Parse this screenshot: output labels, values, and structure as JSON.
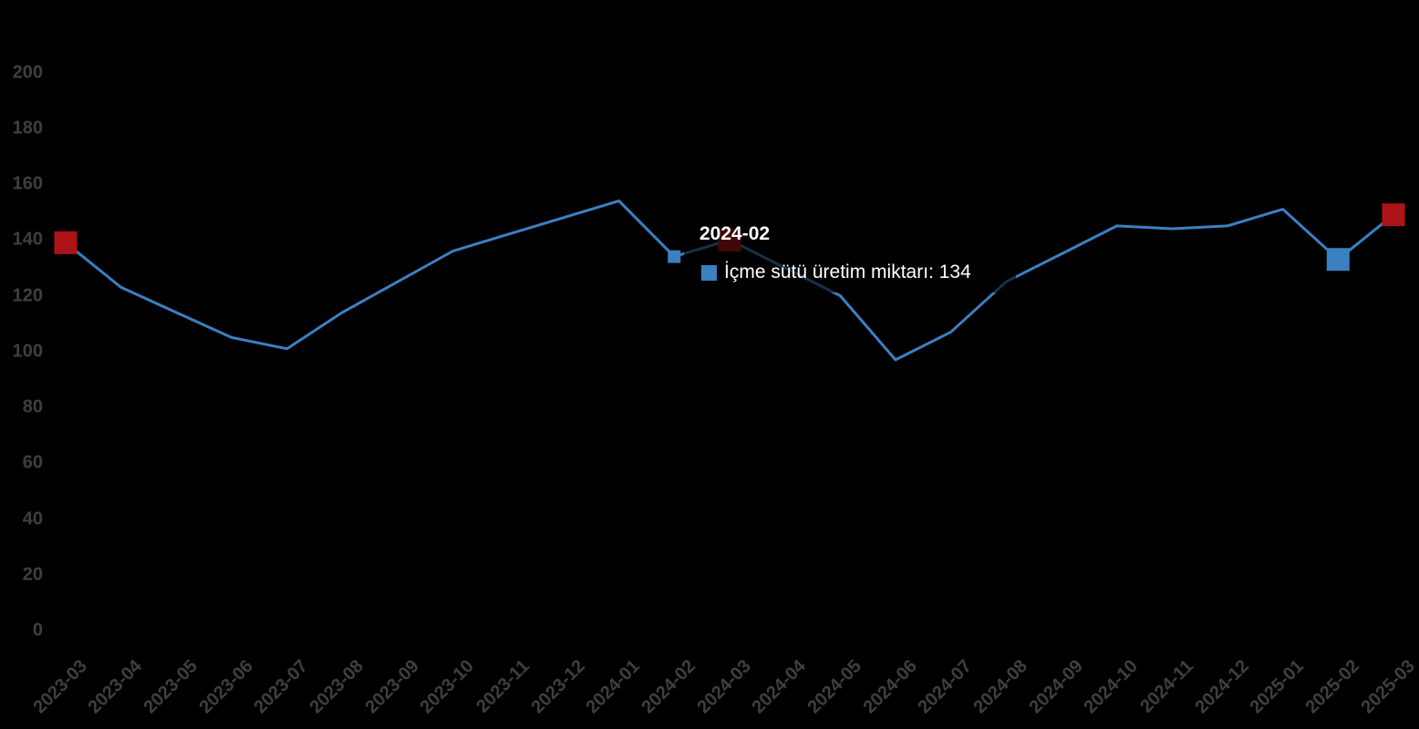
{
  "chart_data": {
    "type": "line",
    "title": "",
    "categories": [
      "2023-03",
      "2023-04",
      "2023-05",
      "2023-06",
      "2023-07",
      "2023-08",
      "2023-09",
      "2023-10",
      "2023-11",
      "2023-12",
      "2024-01",
      "2024-02",
      "2024-03",
      "2024-04",
      "2024-05",
      "2024-06",
      "2024-07",
      "2024-08",
      "2024-09",
      "2024-10",
      "2024-11",
      "2024-12",
      "2025-01",
      "2025-02",
      "2025-03"
    ],
    "series": [
      {
        "name": "İçme sütü üretim miktarı",
        "values": [
          139,
          123,
          114,
          105,
          101,
          114,
          125,
          136,
          142,
          148,
          154,
          134,
          140,
          130,
          120,
          97,
          107,
          125,
          135,
          145,
          144,
          145,
          151,
          133,
          149
        ]
      }
    ],
    "xlabel": "",
    "ylabel": "",
    "ylim": [
      0,
      200
    ],
    "ytick_step": 20,
    "y_tick_labels": [
      "0",
      "20",
      "40",
      "60",
      "80",
      "100",
      "120",
      "140",
      "160",
      "180",
      "200"
    ],
    "grid": false,
    "legend_position": "none"
  },
  "highlights": [
    {
      "category": "2023-03",
      "style": "red"
    },
    {
      "category": "2024-02",
      "style": "hover"
    },
    {
      "category": "2024-03",
      "style": "red"
    },
    {
      "category": "2025-02",
      "style": "blue"
    },
    {
      "category": "2025-03",
      "style": "red"
    }
  ],
  "tooltip": {
    "title": "2024-02",
    "series_label": "İçme sütü üretim miktarı",
    "separator": ": ",
    "value": "134"
  },
  "colors": {
    "background": "#000000",
    "line": "#3b80c1",
    "red_marker": "#ae1318",
    "axis_label": "#3f3f3f",
    "tooltip_text": "#ffffff"
  }
}
